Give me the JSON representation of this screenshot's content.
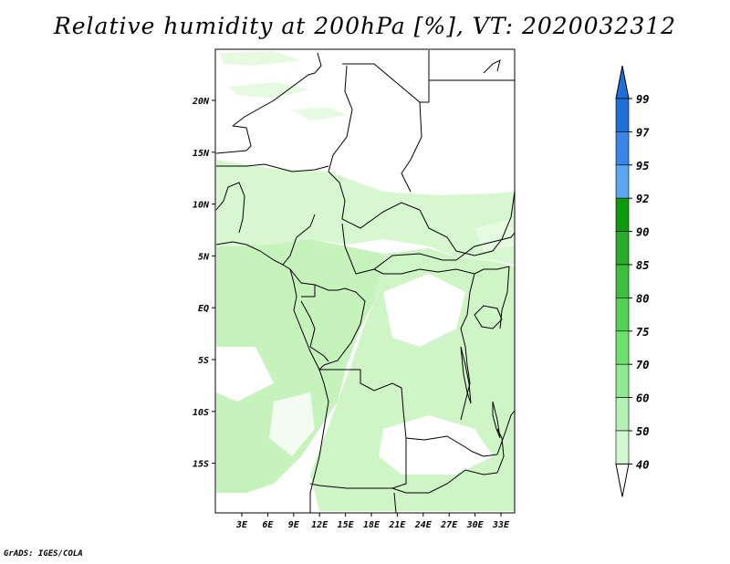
{
  "title": "Relative humidity at 200hPa [%], VT: 2020032312",
  "credit": "GrADS: IGES/COLA",
  "map": {
    "lat_labels": [
      "20N",
      "15N",
      "10N",
      "5N",
      "EQ",
      "5S",
      "10S",
      "15S"
    ],
    "lon_labels": [
      "3E",
      "6E",
      "9E",
      "12E",
      "15E",
      "18E",
      "21E",
      "24E",
      "27E",
      "30E",
      "33E"
    ],
    "lat_range": [
      -20,
      25
    ],
    "lon_range": [
      0,
      35
    ]
  },
  "colorbar": {
    "levels": [
      "99",
      "97",
      "95",
      "92",
      "90",
      "85",
      "80",
      "75",
      "70",
      "60",
      "50",
      "40"
    ],
    "colors": [
      "#1e6fd6",
      "#3a86e8",
      "#5aa6f0",
      "#0c9b0c",
      "#28ad28",
      "#3cbf3c",
      "#52d252",
      "#6ee06e",
      "#90e890",
      "#b4f0b4",
      "#d2f8d2",
      "#ecfcec"
    ],
    "arrow_top_color": "#1e6fd6",
    "arrow_bottom_color": "#ffffff"
  },
  "fill_colors": {
    "light": "#d6f7d0",
    "mid": "#c0f0b6",
    "dark": "#a8e89c"
  }
}
